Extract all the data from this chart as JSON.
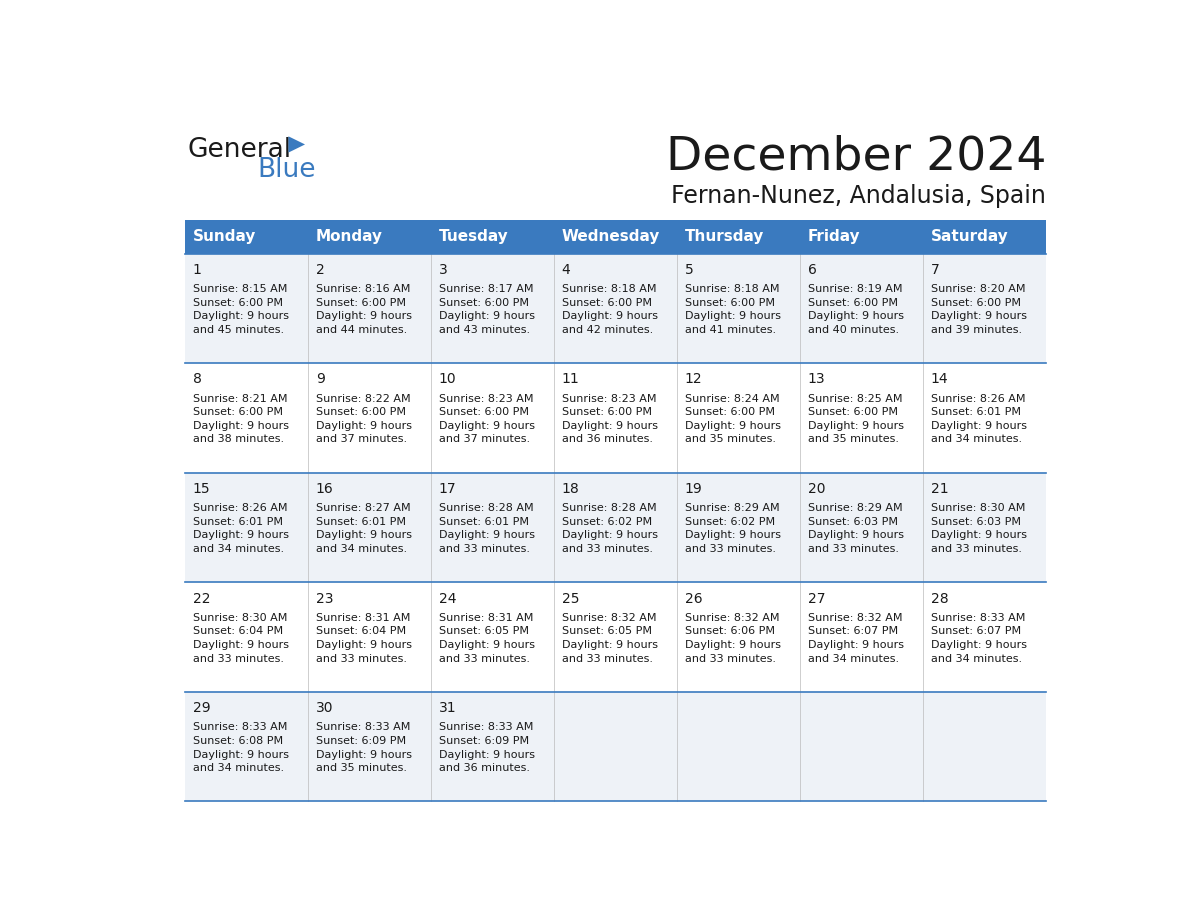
{
  "title": "December 2024",
  "subtitle": "Fernan-Nunez, Andalusia, Spain",
  "header_color": "#3a7abf",
  "header_text_color": "#ffffff",
  "alt_row_bg_even": "#eef2f7",
  "alt_row_bg_odd": "#ffffff",
  "border_color": "#3a7abf",
  "day_names": [
    "Sunday",
    "Monday",
    "Tuesday",
    "Wednesday",
    "Thursday",
    "Friday",
    "Saturday"
  ],
  "weeks": [
    [
      {
        "day": 1,
        "sunrise": "8:15 AM",
        "sunset": "6:00 PM",
        "daylight": "9 hours\nand 45 minutes."
      },
      {
        "day": 2,
        "sunrise": "8:16 AM",
        "sunset": "6:00 PM",
        "daylight": "9 hours\nand 44 minutes."
      },
      {
        "day": 3,
        "sunrise": "8:17 AM",
        "sunset": "6:00 PM",
        "daylight": "9 hours\nand 43 minutes."
      },
      {
        "day": 4,
        "sunrise": "8:18 AM",
        "sunset": "6:00 PM",
        "daylight": "9 hours\nand 42 minutes."
      },
      {
        "day": 5,
        "sunrise": "8:18 AM",
        "sunset": "6:00 PM",
        "daylight": "9 hours\nand 41 minutes."
      },
      {
        "day": 6,
        "sunrise": "8:19 AM",
        "sunset": "6:00 PM",
        "daylight": "9 hours\nand 40 minutes."
      },
      {
        "day": 7,
        "sunrise": "8:20 AM",
        "sunset": "6:00 PM",
        "daylight": "9 hours\nand 39 minutes."
      }
    ],
    [
      {
        "day": 8,
        "sunrise": "8:21 AM",
        "sunset": "6:00 PM",
        "daylight": "9 hours\nand 38 minutes."
      },
      {
        "day": 9,
        "sunrise": "8:22 AM",
        "sunset": "6:00 PM",
        "daylight": "9 hours\nand 37 minutes."
      },
      {
        "day": 10,
        "sunrise": "8:23 AM",
        "sunset": "6:00 PM",
        "daylight": "9 hours\nand 37 minutes."
      },
      {
        "day": 11,
        "sunrise": "8:23 AM",
        "sunset": "6:00 PM",
        "daylight": "9 hours\nand 36 minutes."
      },
      {
        "day": 12,
        "sunrise": "8:24 AM",
        "sunset": "6:00 PM",
        "daylight": "9 hours\nand 35 minutes."
      },
      {
        "day": 13,
        "sunrise": "8:25 AM",
        "sunset": "6:00 PM",
        "daylight": "9 hours\nand 35 minutes."
      },
      {
        "day": 14,
        "sunrise": "8:26 AM",
        "sunset": "6:01 PM",
        "daylight": "9 hours\nand 34 minutes."
      }
    ],
    [
      {
        "day": 15,
        "sunrise": "8:26 AM",
        "sunset": "6:01 PM",
        "daylight": "9 hours\nand 34 minutes."
      },
      {
        "day": 16,
        "sunrise": "8:27 AM",
        "sunset": "6:01 PM",
        "daylight": "9 hours\nand 34 minutes."
      },
      {
        "day": 17,
        "sunrise": "8:28 AM",
        "sunset": "6:01 PM",
        "daylight": "9 hours\nand 33 minutes."
      },
      {
        "day": 18,
        "sunrise": "8:28 AM",
        "sunset": "6:02 PM",
        "daylight": "9 hours\nand 33 minutes."
      },
      {
        "day": 19,
        "sunrise": "8:29 AM",
        "sunset": "6:02 PM",
        "daylight": "9 hours\nand 33 minutes."
      },
      {
        "day": 20,
        "sunrise": "8:29 AM",
        "sunset": "6:03 PM",
        "daylight": "9 hours\nand 33 minutes."
      },
      {
        "day": 21,
        "sunrise": "8:30 AM",
        "sunset": "6:03 PM",
        "daylight": "9 hours\nand 33 minutes."
      }
    ],
    [
      {
        "day": 22,
        "sunrise": "8:30 AM",
        "sunset": "6:04 PM",
        "daylight": "9 hours\nand 33 minutes."
      },
      {
        "day": 23,
        "sunrise": "8:31 AM",
        "sunset": "6:04 PM",
        "daylight": "9 hours\nand 33 minutes."
      },
      {
        "day": 24,
        "sunrise": "8:31 AM",
        "sunset": "6:05 PM",
        "daylight": "9 hours\nand 33 minutes."
      },
      {
        "day": 25,
        "sunrise": "8:32 AM",
        "sunset": "6:05 PM",
        "daylight": "9 hours\nand 33 minutes."
      },
      {
        "day": 26,
        "sunrise": "8:32 AM",
        "sunset": "6:06 PM",
        "daylight": "9 hours\nand 33 minutes."
      },
      {
        "day": 27,
        "sunrise": "8:32 AM",
        "sunset": "6:07 PM",
        "daylight": "9 hours\nand 34 minutes."
      },
      {
        "day": 28,
        "sunrise": "8:33 AM",
        "sunset": "6:07 PM",
        "daylight": "9 hours\nand 34 minutes."
      }
    ],
    [
      {
        "day": 29,
        "sunrise": "8:33 AM",
        "sunset": "6:08 PM",
        "daylight": "9 hours\nand 34 minutes."
      },
      {
        "day": 30,
        "sunrise": "8:33 AM",
        "sunset": "6:09 PM",
        "daylight": "9 hours\nand 35 minutes."
      },
      {
        "day": 31,
        "sunrise": "8:33 AM",
        "sunset": "6:09 PM",
        "daylight": "9 hours\nand 36 minutes."
      },
      null,
      null,
      null,
      null
    ]
  ]
}
